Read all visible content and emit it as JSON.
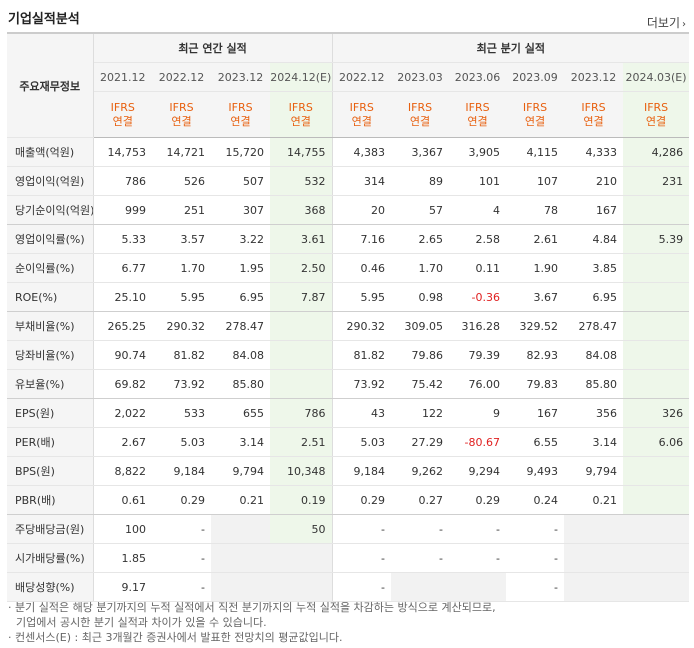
{
  "title": "기업실적분석",
  "more_label": "더보기",
  "corner_label": "주요재무정보",
  "annual_header": "최근 연간 실적",
  "quarter_header": "최근 분기 실적",
  "annual_periods": [
    "2021.12",
    "2022.12",
    "2023.12",
    "2024.12(E)"
  ],
  "quarter_periods": [
    "2022.12",
    "2023.03",
    "2023.06",
    "2023.09",
    "2023.12",
    "2024.03(E)"
  ],
  "basis_line1": "IFRS",
  "basis_line2": "연결",
  "rows": [
    {
      "label": "매출액(억원)",
      "values": [
        "14,753",
        "14,721",
        "15,720",
        "14,755",
        "4,383",
        "3,367",
        "3,905",
        "4,115",
        "4,333",
        "4,286"
      ]
    },
    {
      "label": "영업이익(억원)",
      "values": [
        "786",
        "526",
        "507",
        "532",
        "314",
        "89",
        "101",
        "107",
        "210",
        "231"
      ]
    },
    {
      "label": "당기순이익(억원)",
      "values": [
        "999",
        "251",
        "307",
        "368",
        "20",
        "57",
        "4",
        "78",
        "167",
        ""
      ]
    },
    {
      "label": "영업이익률(%)",
      "values": [
        "5.33",
        "3.57",
        "3.22",
        "3.61",
        "7.16",
        "2.65",
        "2.58",
        "2.61",
        "4.84",
        "5.39"
      ]
    },
    {
      "label": "순이익률(%)",
      "values": [
        "6.77",
        "1.70",
        "1.95",
        "2.50",
        "0.46",
        "1.70",
        "0.11",
        "1.90",
        "3.85",
        ""
      ]
    },
    {
      "label": "ROE(%)",
      "values": [
        "25.10",
        "5.95",
        "6.95",
        "7.87",
        "5.95",
        "0.98",
        "-0.36",
        "3.67",
        "6.95",
        ""
      ]
    },
    {
      "label": "부채비율(%)",
      "values": [
        "265.25",
        "290.32",
        "278.47",
        "",
        "290.32",
        "309.05",
        "316.28",
        "329.52",
        "278.47",
        ""
      ]
    },
    {
      "label": "당좌비율(%)",
      "values": [
        "90.74",
        "81.82",
        "84.08",
        "",
        "81.82",
        "79.86",
        "79.39",
        "82.93",
        "84.08",
        ""
      ]
    },
    {
      "label": "유보율(%)",
      "values": [
        "69.82",
        "73.92",
        "85.80",
        "",
        "73.92",
        "75.42",
        "76.00",
        "79.83",
        "85.80",
        ""
      ]
    },
    {
      "label": "EPS(원)",
      "values": [
        "2,022",
        "533",
        "655",
        "786",
        "43",
        "122",
        "9",
        "167",
        "356",
        "326"
      ]
    },
    {
      "label": "PER(배)",
      "values": [
        "2.67",
        "5.03",
        "3.14",
        "2.51",
        "5.03",
        "27.29",
        "-80.67",
        "6.55",
        "3.14",
        "6.06"
      ]
    },
    {
      "label": "BPS(원)",
      "values": [
        "8,822",
        "9,184",
        "9,794",
        "10,348",
        "9,184",
        "9,262",
        "9,294",
        "9,493",
        "9,794",
        ""
      ]
    },
    {
      "label": "PBR(배)",
      "values": [
        "0.61",
        "0.29",
        "0.21",
        "0.19",
        "0.29",
        "0.27",
        "0.29",
        "0.24",
        "0.21",
        ""
      ]
    },
    {
      "label": "주당배당금(원)",
      "values": [
        "100",
        "-",
        "",
        "50",
        "-",
        "-",
        "-",
        "-",
        "",
        ""
      ]
    },
    {
      "label": "시가배당률(%)",
      "values": [
        "1.85",
        "-",
        "",
        "",
        "-",
        "-",
        "-",
        "-",
        "",
        ""
      ]
    },
    {
      "label": "배당성향(%)",
      "values": [
        "9.17",
        "-",
        "",
        "",
        "-",
        "",
        "",
        "-",
        "",
        ""
      ]
    }
  ],
  "notes": [
    "· 분기 실적은 해당 분기까지의 누적 실적에서 직전 분기까지의 누적 실적을 차감하는 방식으로 계산되므로,",
    "기업에서 공시한 분기 실적과 차이가 있을 수 있습니다.",
    "· 컨센서스(E) : 최근 3개월간 증권사에서 발표한 전망치의 평균값입니다."
  ]
}
